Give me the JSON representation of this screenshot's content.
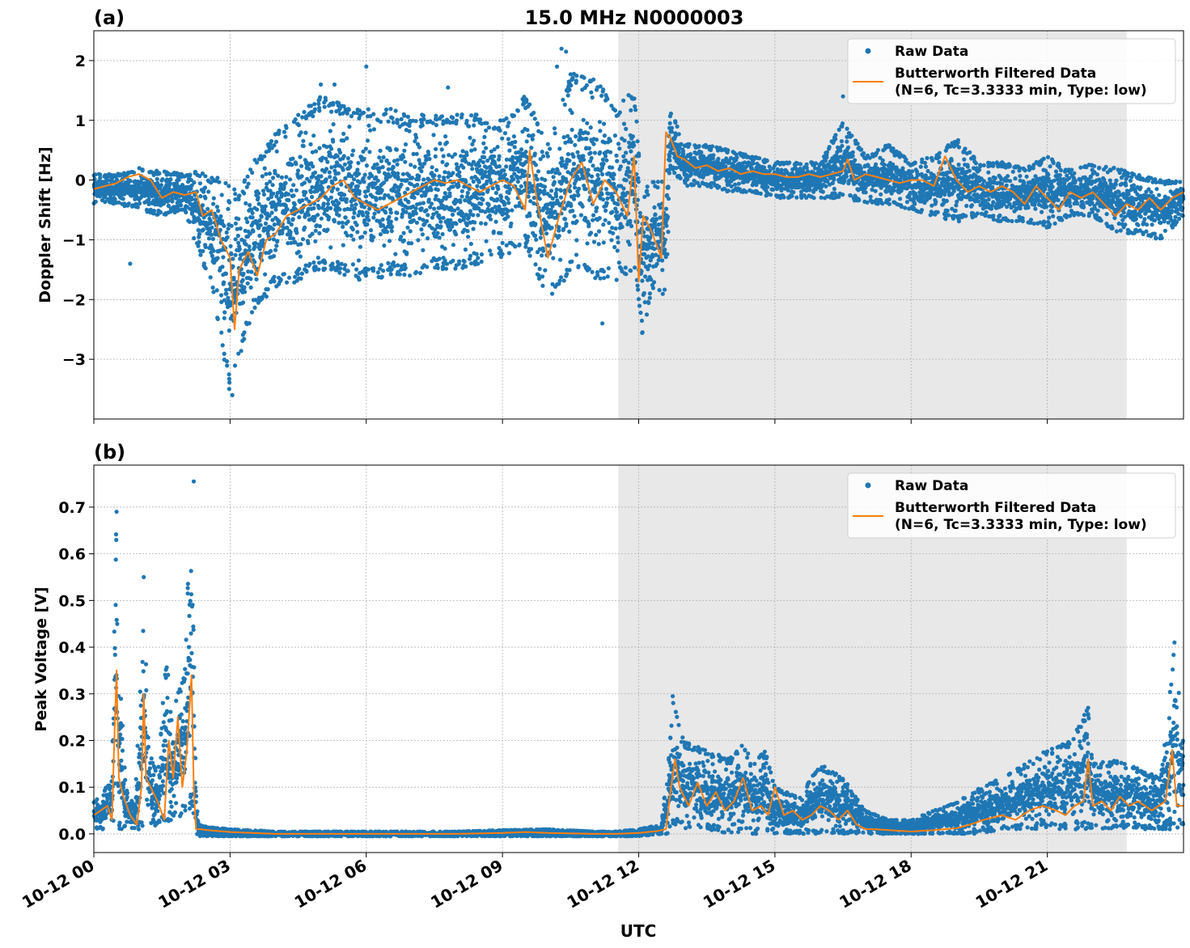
{
  "chart_data": [
    {
      "type": "scatter",
      "panel_label": "(a)",
      "title": "15.0 MHz N0000003",
      "xlabel": "",
      "ylabel": "Doppler Shift [Hz]",
      "x_unit": "hours since 10-12 00:00 UTC",
      "xlim": [
        0,
        24
      ],
      "ylim": [
        -4.0,
        2.5
      ],
      "yticks": [
        -3,
        -2,
        -1,
        0,
        1,
        2
      ],
      "ytick_labels": [
        "−3",
        "−2",
        "−1",
        "0",
        "1",
        "2"
      ],
      "shaded_interval": [
        11.55,
        22.75
      ],
      "grid": true,
      "legend_placement": "top-right",
      "series": [
        {
          "name": "Raw Data",
          "type": "scatter",
          "color": "#1f77b4",
          "envelope_x": [
            0,
            0.5,
            1,
            1.5,
            2,
            2.3,
            2.6,
            3,
            3.2,
            3.5,
            4,
            4.5,
            5,
            5.5,
            6,
            6.5,
            7,
            7.5,
            8,
            8.5,
            9,
            9.5,
            10,
            10.5,
            11,
            11.5,
            11.9,
            12.1,
            12.3,
            12.6,
            12.7,
            13,
            13.5,
            14,
            14.5,
            15,
            15.5,
            16,
            16.5,
            17,
            17.5,
            18,
            18.5,
            19,
            19.5,
            20,
            20.5,
            21,
            21.5,
            22,
            22.5,
            23,
            23.5,
            24
          ],
          "envelope_upper": [
            0.1,
            0.1,
            0.2,
            0.15,
            0.1,
            0.15,
            0.1,
            0.1,
            -0.2,
            0.3,
            0.8,
            1.1,
            1.4,
            1.3,
            1.2,
            1.2,
            1.1,
            1.1,
            1.1,
            1.1,
            1.0,
            1.5,
            0.6,
            1.8,
            1.7,
            1.3,
            1.5,
            -0.2,
            0.0,
            0.0,
            1.2,
            0.6,
            0.6,
            0.5,
            0.4,
            0.3,
            0.3,
            0.3,
            1.0,
            0.4,
            0.6,
            0.3,
            0.4,
            0.7,
            0.3,
            0.3,
            0.2,
            0.4,
            0.2,
            0.3,
            0.2,
            0.1,
            0.0,
            0.0
          ],
          "envelope_lower": [
            -0.4,
            -0.4,
            -0.5,
            -0.6,
            -0.5,
            -1.2,
            -1.8,
            -3.6,
            -3.0,
            -2.2,
            -1.8,
            -1.7,
            -1.5,
            -1.6,
            -1.7,
            -1.6,
            -1.6,
            -1.5,
            -1.5,
            -1.4,
            -1.3,
            -1.1,
            -2.0,
            -1.6,
            -1.7,
            -1.7,
            -1.5,
            -2.7,
            -1.8,
            -2.0,
            0.2,
            -0.1,
            -0.1,
            -0.2,
            -0.2,
            -0.3,
            -0.3,
            -0.3,
            -0.3,
            -0.4,
            -0.4,
            -0.5,
            -0.6,
            -0.7,
            -0.6,
            -0.7,
            -0.7,
            -0.8,
            -0.6,
            -0.6,
            -0.9,
            -0.9,
            -1.0,
            -0.6
          ],
          "outliers": [
            [
              10.3,
              2.2
            ],
            [
              10.4,
              2.15
            ],
            [
              10.2,
              1.9
            ],
            [
              5.3,
              1.6
            ],
            [
              5.0,
              1.6
            ],
            [
              6.0,
              1.9
            ],
            [
              7.8,
              1.55
            ],
            [
              16.5,
              1.4
            ],
            [
              11.2,
              -2.4
            ],
            [
              3.05,
              -3.6
            ],
            [
              0.8,
              -1.4
            ]
          ]
        },
        {
          "name": "Butterworth Filtered Data\n(N=6, Tc=3.3333 min, Type: low)",
          "type": "line",
          "color": "#ff7f0e",
          "x": [
            0,
            0.25,
            0.5,
            0.75,
            1,
            1.25,
            1.5,
            1.75,
            2,
            2.25,
            2.4,
            2.6,
            2.8,
            3,
            3.1,
            3.2,
            3.4,
            3.6,
            3.8,
            4,
            4.25,
            4.5,
            4.75,
            5,
            5.25,
            5.5,
            5.75,
            6,
            6.25,
            6.5,
            6.75,
            7,
            7.25,
            7.5,
            7.75,
            8,
            8.25,
            8.5,
            8.75,
            9,
            9.25,
            9.5,
            9.6,
            9.75,
            10,
            10.25,
            10.5,
            10.75,
            11,
            11.25,
            11.5,
            11.75,
            11.9,
            12.0,
            12.1,
            12.25,
            12.5,
            12.6,
            12.7,
            12.85,
            13,
            13.25,
            13.5,
            13.75,
            14,
            14.25,
            14.5,
            14.75,
            15,
            15.25,
            15.5,
            15.75,
            16,
            16.25,
            16.5,
            16.6,
            16.75,
            17,
            17.25,
            17.5,
            17.75,
            18,
            18.25,
            18.5,
            18.75,
            19,
            19.25,
            19.5,
            19.75,
            20,
            20.25,
            20.5,
            20.75,
            21,
            21.25,
            21.5,
            21.75,
            22,
            22.25,
            22.5,
            22.75,
            23,
            23.25,
            23.5,
            23.75,
            24
          ],
          "y": [
            -0.15,
            -0.1,
            -0.05,
            0.05,
            0.1,
            0.0,
            -0.3,
            -0.2,
            -0.25,
            -0.2,
            -0.6,
            -0.5,
            -1.0,
            -1.3,
            -2.5,
            -1.5,
            -1.2,
            -1.6,
            -1.0,
            -0.9,
            -0.6,
            -0.5,
            -0.4,
            -0.3,
            -0.1,
            0.0,
            -0.3,
            -0.4,
            -0.5,
            -0.4,
            -0.3,
            -0.2,
            -0.1,
            0.0,
            -0.05,
            0.0,
            -0.1,
            -0.2,
            -0.1,
            0.0,
            -0.1,
            -0.5,
            0.5,
            -0.3,
            -1.3,
            -0.6,
            0.0,
            0.3,
            -0.4,
            0.0,
            -0.2,
            -0.6,
            0.4,
            -1.7,
            -0.6,
            -0.8,
            -1.3,
            0.8,
            0.7,
            0.4,
            0.35,
            0.2,
            0.25,
            0.15,
            0.2,
            0.1,
            0.15,
            0.1,
            0.1,
            0.05,
            0.05,
            0.1,
            0.05,
            0.1,
            0.15,
            0.35,
            0.0,
            0.1,
            0.05,
            0.0,
            -0.05,
            0.0,
            0.0,
            -0.1,
            0.4,
            0.0,
            -0.2,
            -0.1,
            -0.2,
            -0.1,
            -0.2,
            -0.4,
            -0.1,
            -0.3,
            -0.5,
            -0.2,
            -0.3,
            -0.2,
            -0.4,
            -0.6,
            -0.4,
            -0.5,
            -0.3,
            -0.5,
            -0.3,
            -0.2
          ]
        }
      ]
    },
    {
      "type": "scatter",
      "panel_label": "(b)",
      "title": "",
      "xlabel": "UTC",
      "ylabel": "Peak Voltage [V]",
      "x_unit": "hours since 10-12 00:00 UTC",
      "xlim": [
        0,
        24
      ],
      "ylim": [
        -0.04,
        0.79
      ],
      "yticks": [
        0.0,
        0.1,
        0.2,
        0.3,
        0.4,
        0.5,
        0.6,
        0.7
      ],
      "ytick_labels": [
        "0.0",
        "0.1",
        "0.2",
        "0.3",
        "0.4",
        "0.5",
        "0.6",
        "0.7"
      ],
      "xticks": [
        0,
        3,
        6,
        9,
        12,
        15,
        18,
        21
      ],
      "xtick_labels": [
        "10-12 00",
        "10-12 03",
        "10-12 06",
        "10-12 09",
        "10-12 12",
        "10-12 15",
        "10-12 18",
        "10-12 21"
      ],
      "shaded_interval": [
        11.55,
        22.75
      ],
      "grid": true,
      "legend_placement": "top-right",
      "series": [
        {
          "name": "Raw Data",
          "type": "scatter",
          "color": "#1f77b4",
          "envelope_x": [
            0,
            0.2,
            0.4,
            0.45,
            0.5,
            0.55,
            0.7,
            0.9,
            1.05,
            1.1,
            1.2,
            1.4,
            1.6,
            1.7,
            1.8,
            2.0,
            2.15,
            2.25,
            2.3,
            2.5,
            3,
            4,
            6,
            8,
            9,
            10,
            11,
            11.5,
            12,
            12.5,
            12.65,
            12.75,
            13,
            13.5,
            14,
            14.3,
            14.5,
            14.8,
            15,
            15.5,
            16,
            16.5,
            17,
            17.5,
            18,
            18.5,
            19,
            19.5,
            20,
            20.5,
            21,
            21.5,
            21.9,
            22,
            22.5,
            23,
            23.5,
            23.8,
            24
          ],
          "envelope_upper": [
            0.07,
            0.09,
            0.12,
            0.45,
            0.69,
            0.4,
            0.1,
            0.06,
            0.38,
            0.55,
            0.2,
            0.12,
            0.39,
            0.25,
            0.3,
            0.35,
            0.76,
            0.1,
            0.02,
            0.015,
            0.01,
            0.005,
            0.005,
            0.005,
            0.008,
            0.01,
            0.005,
            0.005,
            0.01,
            0.02,
            0.15,
            0.29,
            0.2,
            0.18,
            0.16,
            0.2,
            0.15,
            0.18,
            0.1,
            0.08,
            0.15,
            0.12,
            0.05,
            0.03,
            0.03,
            0.05,
            0.07,
            0.1,
            0.12,
            0.15,
            0.18,
            0.2,
            0.27,
            0.15,
            0.16,
            0.14,
            0.12,
            0.41,
            0.2
          ],
          "envelope_lower": [
            0.01,
            0.01,
            0.02,
            0.02,
            0.03,
            0.01,
            0.01,
            0.01,
            0.01,
            0.01,
            0.01,
            0.02,
            0.02,
            0.03,
            0.03,
            0.04,
            0.05,
            0.0,
            -0.005,
            -0.005,
            -0.005,
            -0.005,
            -0.005,
            -0.005,
            -0.005,
            -0.005,
            -0.005,
            -0.005,
            -0.005,
            0.0,
            0.0,
            0.02,
            0.01,
            0.01,
            0.0,
            0.0,
            0.0,
            0.0,
            0.0,
            0.0,
            0.0,
            0.0,
            0.0,
            0.0,
            0.0,
            0.0,
            0.0,
            0.0,
            0.01,
            0.01,
            0.01,
            0.01,
            0.01,
            0.01,
            0.01,
            0.01,
            0.01,
            0.01,
            0.01
          ],
          "outliers": [
            [
              2.2,
              0.755
            ],
            [
              0.5,
              0.69
            ],
            [
              1.1,
              0.55
            ],
            [
              12.75,
              0.295
            ],
            [
              21.9,
              0.27
            ],
            [
              23.8,
              0.41
            ]
          ]
        },
        {
          "name": "Butterworth Filtered Data\n(N=6, Tc=3.3333 min, Type: low)",
          "type": "line",
          "color": "#ff7f0e",
          "x": [
            0,
            0.15,
            0.3,
            0.4,
            0.45,
            0.5,
            0.55,
            0.65,
            0.8,
            0.95,
            1.05,
            1.1,
            1.15,
            1.25,
            1.4,
            1.55,
            1.65,
            1.75,
            1.85,
            1.95,
            2.05,
            2.15,
            2.2,
            2.25,
            2.35,
            2.5,
            3,
            4,
            6,
            8,
            9,
            9.5,
            10,
            11,
            11.5,
            12,
            12.4,
            12.6,
            12.7,
            12.8,
            12.9,
            13.1,
            13.3,
            13.5,
            13.7,
            13.9,
            14.1,
            14.3,
            14.5,
            14.7,
            14.85,
            15,
            15.2,
            15.4,
            15.6,
            15.8,
            16.0,
            16.2,
            16.4,
            16.6,
            16.8,
            17.0,
            17.2,
            17.5,
            18,
            18.5,
            19,
            19.3,
            19.6,
            20,
            20.3,
            20.6,
            20.9,
            21.2,
            21.4,
            21.6,
            21.8,
            21.9,
            22.0,
            22.2,
            22.4,
            22.6,
            22.8,
            23,
            23.3,
            23.6,
            23.75,
            23.85,
            24
          ],
          "y": [
            0.04,
            0.05,
            0.06,
            0.03,
            0.2,
            0.35,
            0.12,
            0.08,
            0.04,
            0.02,
            0.1,
            0.3,
            0.12,
            0.1,
            0.07,
            0.03,
            0.2,
            0.12,
            0.25,
            0.1,
            0.18,
            0.34,
            0.1,
            0.01,
            0.01,
            0.008,
            0.004,
            0.0,
            0.0,
            0.0,
            0.002,
            0.004,
            0.002,
            0.0,
            0.0,
            0.002,
            0.006,
            0.01,
            0.09,
            0.16,
            0.1,
            0.06,
            0.11,
            0.06,
            0.09,
            0.05,
            0.07,
            0.12,
            0.05,
            0.06,
            0.04,
            0.1,
            0.04,
            0.05,
            0.03,
            0.04,
            0.06,
            0.05,
            0.03,
            0.05,
            0.02,
            0.01,
            0.01,
            0.008,
            0.005,
            0.008,
            0.012,
            0.02,
            0.03,
            0.04,
            0.03,
            0.05,
            0.06,
            0.05,
            0.04,
            0.06,
            0.07,
            0.16,
            0.06,
            0.07,
            0.05,
            0.08,
            0.06,
            0.07,
            0.05,
            0.07,
            0.18,
            0.06,
            0.06
          ]
        }
      ]
    }
  ]
}
